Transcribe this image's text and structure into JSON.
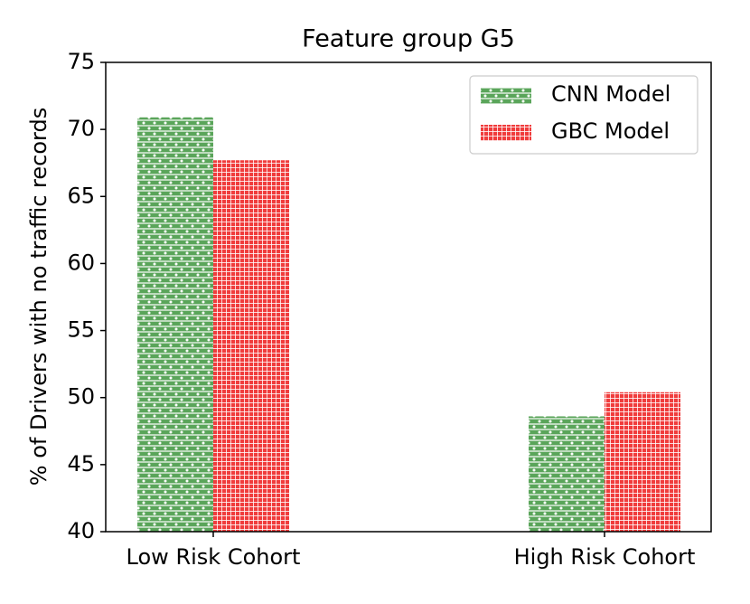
{
  "chart_data": {
    "type": "bar",
    "title": "Feature group G5",
    "y_label": "% of Drivers with no traffic records",
    "categories": [
      "Low Risk Cohort",
      "High Risk Cohort"
    ],
    "series": [
      {
        "name": "CNN Model",
        "color": "#5aa55a",
        "values": [
          70.9,
          48.6
        ]
      },
      {
        "name": "GBC Model",
        "color": "#f03c3c",
        "values": [
          67.7,
          50.4
        ]
      }
    ],
    "ylim": [
      40,
      75
    ],
    "yticks": [
      40,
      45,
      50,
      55,
      60,
      65,
      70,
      75
    ],
    "legend": "upper right"
  }
}
